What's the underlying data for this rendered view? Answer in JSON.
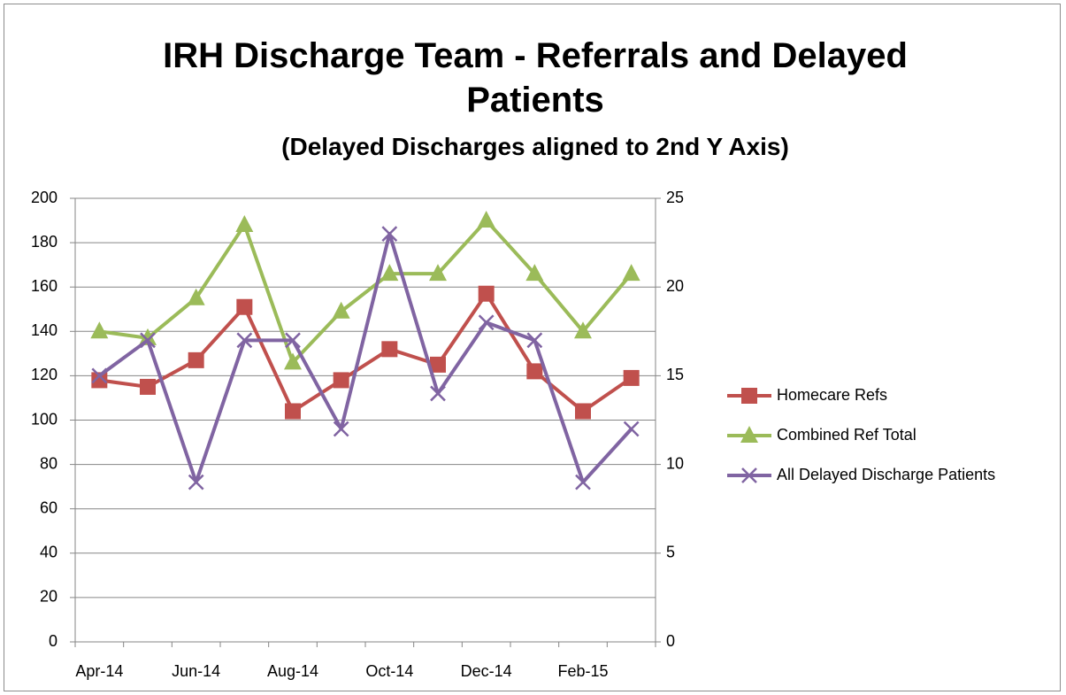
{
  "chart_data": {
    "type": "line",
    "title": "IRH Discharge Team - Referrals and Delayed Patients",
    "subtitle": "(Delayed Discharges aligned to 2nd Y Axis)",
    "categories": [
      "Apr-14",
      null,
      "Jun-14",
      null,
      "Aug-14",
      null,
      "Oct-14",
      null,
      "Dec-14",
      null,
      "Feb-15",
      null
    ],
    "series": [
      {
        "name": "Homecare Refs",
        "color": "#c0504d",
        "marker": "square",
        "values": [
          118,
          115,
          127,
          151,
          104,
          118,
          132,
          125,
          157,
          122,
          104,
          119
        ]
      },
      {
        "name": "Combined Ref Total",
        "color": "#9bbb59",
        "marker": "triangle",
        "values": [
          140,
          137,
          155,
          188,
          126,
          149,
          166,
          166,
          190,
          166,
          140,
          166
        ]
      },
      {
        "name": "All Delayed Discharge Patients",
        "color": "#8064a2",
        "marker": "x",
        "axis": "y2",
        "values": [
          15,
          17,
          9,
          17,
          17,
          12,
          23,
          14,
          18,
          17,
          9,
          12
        ]
      }
    ],
    "ylim": [
      0,
      200
    ],
    "yticks": [
      0,
      20,
      40,
      60,
      80,
      100,
      120,
      140,
      160,
      180,
      200
    ],
    "y2lim": [
      0,
      25
    ],
    "y2ticks": [
      0,
      5,
      10,
      15,
      20,
      25
    ],
    "grid": true,
    "legend": "right"
  }
}
